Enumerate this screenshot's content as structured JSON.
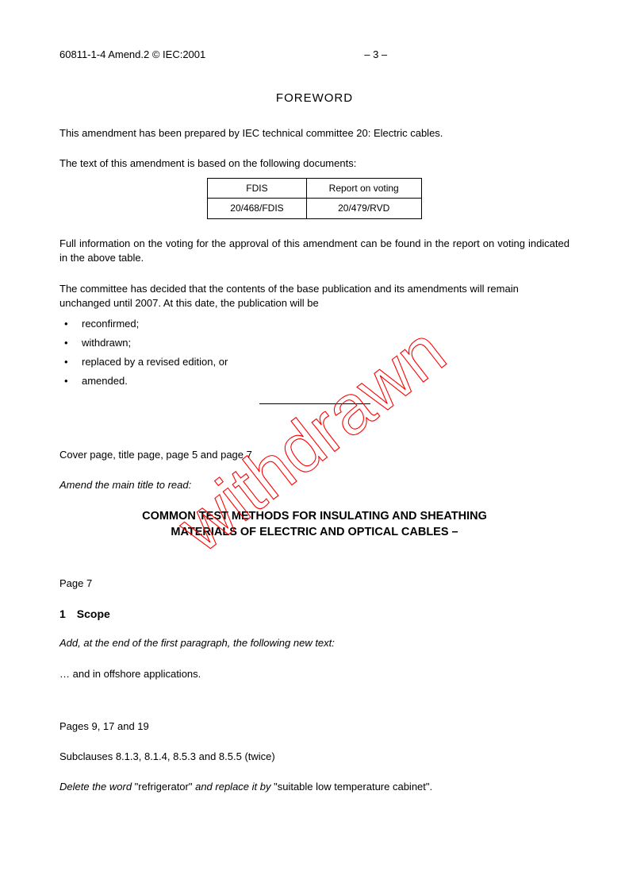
{
  "header": {
    "doc_ref": "60811-1-4 Amend.2 © IEC:2001",
    "page_num": "– 3 –"
  },
  "foreword": {
    "title": "FOREWORD",
    "p1": "This amendment has been prepared by IEC technical committee 20: Electric cables.",
    "p2": "The text of this amendment is based on the following documents:",
    "table": {
      "h1": "FDIS",
      "h2": "Report on voting",
      "c1": "20/468/FDIS",
      "c2": "20/479/RVD"
    },
    "p3": "Full information on the voting for the approval of this amendment can be found in the report on voting indicated in the above table.",
    "p4": "The committee has decided that the contents of the base publication and its amendments will remain unchanged until 2007. At this date, the publication will be",
    "bullets": {
      "b1": "reconfirmed;",
      "b2": "withdrawn;",
      "b3": "replaced by a revised edition, or",
      "b4": "amended."
    }
  },
  "body": {
    "cover_note": "Cover page, title page, page 5 and page 7",
    "amend_instr": "Amend the main title to read:",
    "main_title_l1": "COMMON TEST METHODS FOR INSULATING AND SHEATHING",
    "main_title_l2": "MATERIALS OF ELECTRIC AND OPTICAL CABLES –",
    "page7": "Page 7",
    "scope_num": "1",
    "scope_label": "Scope",
    "scope_instr": "Add, at the end of the first paragraph, the following new text:",
    "scope_text": "… and in offshore applications.",
    "pages_ref": "Pages 9, 17 and 19",
    "subclauses": "Subclauses 8.1.3, 8.1.4, 8.5.3 and 8.5.5 (twice)",
    "delete_pre": "Delete the word",
    "delete_q1": " \"refrigerator\" ",
    "delete_mid": "and replace it by",
    "delete_q2": "  \"suitable low temperature cabinet\"."
  },
  "watermark": {
    "text": "withdrawn",
    "color": "#ff0000",
    "stroke_width": 1.1,
    "font_size": 88,
    "rotate_deg": -38
  }
}
